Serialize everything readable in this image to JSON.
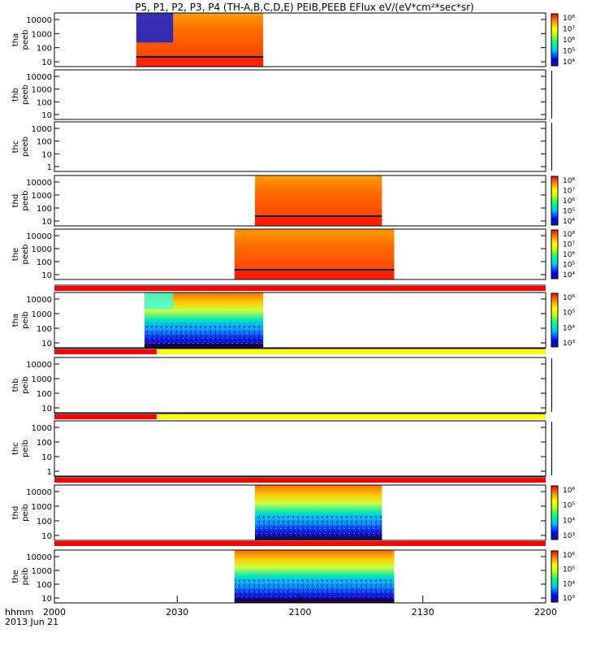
{
  "title": "P5, P1, P2, P3, P4 (TH-A,B,C,D,E) PEIB,PEEB EFlux eV/(eV*cm²*sec*sr)",
  "time_axis": {
    "label": "hhmm",
    "date": "2013 Jun 21",
    "ticks": [
      "2000",
      "2030",
      "2100",
      "2130",
      "2200"
    ]
  },
  "colors": {
    "status_red": "#ff0000",
    "status_yellow": "#ffff00"
  },
  "chart_data": [
    {
      "type": "heatmap",
      "id": "tha-peeb",
      "ylabel": [
        "tha",
        "peeb"
      ],
      "yticks": [
        "10000",
        "1000",
        "100",
        "10"
      ],
      "colorbar": [
        "10⁸",
        "10⁷",
        "10⁶",
        "10⁵",
        "10⁴"
      ],
      "coverage": [
        "20:20",
        "20:51"
      ],
      "scale": "log",
      "yrange": [
        5,
        30000
      ]
    },
    {
      "type": "heatmap",
      "id": "thb-peeb",
      "ylabel": [
        "thb",
        "peeb"
      ],
      "yticks": [
        "10000",
        "1000",
        "100",
        "10"
      ],
      "colorbar": [],
      "coverage": []
    },
    {
      "type": "heatmap",
      "id": "thc-peeb",
      "ylabel": [
        "thc",
        "peeb"
      ],
      "yticks": [
        "1000",
        "100",
        "10",
        "1"
      ],
      "colorbar": [],
      "coverage": []
    },
    {
      "type": "heatmap",
      "id": "thd-peeb",
      "ylabel": [
        "thd",
        "peeb"
      ],
      "yticks": [
        "10000",
        "1000",
        "100",
        "10"
      ],
      "colorbar": [
        "10⁸",
        "10⁷",
        "10⁶",
        "10⁵",
        "10⁴"
      ],
      "coverage": [
        "20:49",
        "21:20"
      ]
    },
    {
      "type": "heatmap",
      "id": "the-peeb",
      "ylabel": [
        "the",
        "peeb"
      ],
      "yticks": [
        "10000",
        "1000",
        "100",
        "10"
      ],
      "colorbar": [
        "10⁸",
        "10⁷",
        "10⁶",
        "10⁵",
        "10⁴"
      ],
      "coverage": [
        "20:44",
        "21:23"
      ]
    },
    {
      "type": "heatmap",
      "id": "tha-peib",
      "ylabel": [
        "tha",
        "peib"
      ],
      "yticks": [
        "10000",
        "1000",
        "100",
        "10"
      ],
      "colorbar": [
        "10⁶",
        "10⁵",
        "10⁴",
        "10³"
      ],
      "coverage": [
        "20:22",
        "20:51"
      ]
    },
    {
      "type": "heatmap",
      "id": "thb-peib",
      "ylabel": [
        "thb",
        "peib"
      ],
      "yticks": [
        "10000",
        "1000",
        "100",
        "10"
      ],
      "colorbar": [],
      "coverage": []
    },
    {
      "type": "heatmap",
      "id": "thc-peib",
      "ylabel": [
        "thc",
        "peib"
      ],
      "yticks": [
        "1000",
        "100",
        "10",
        "1"
      ],
      "colorbar": [],
      "coverage": []
    },
    {
      "type": "heatmap",
      "id": "thd-peib",
      "ylabel": [
        "thd",
        "peib"
      ],
      "yticks": [
        "10000",
        "1000",
        "100",
        "10"
      ],
      "colorbar": [
        "10⁶",
        "10⁵",
        "10⁴",
        "10³"
      ],
      "coverage": [
        "20:49",
        "21:20"
      ]
    },
    {
      "type": "heatmap",
      "id": "the-peib",
      "ylabel": [
        "the",
        "peib"
      ],
      "yticks": [
        "10000",
        "1000",
        "100",
        "10"
      ],
      "colorbar": [
        "10⁶",
        "10⁵",
        "10⁴",
        "10³"
      ],
      "coverage": [
        "20:44",
        "21:23"
      ]
    }
  ],
  "mode_bars": [
    {
      "id": "mode-bar-1",
      "segments": [
        {
          "color": "red",
          "span": [
            "20:00",
            "22:00"
          ]
        }
      ]
    },
    {
      "id": "mode-bar-2",
      "segments": [
        {
          "color": "red",
          "span": [
            "20:00",
            "20:25"
          ]
        },
        {
          "color": "yellow",
          "span": [
            "20:25",
            "22:00"
          ]
        }
      ]
    },
    {
      "id": "mode-bar-3",
      "segments": [
        {
          "color": "red",
          "span": [
            "20:00",
            "20:25"
          ]
        },
        {
          "color": "yellow",
          "span": [
            "20:25",
            "22:00"
          ]
        }
      ]
    },
    {
      "id": "mode-bar-4",
      "segments": [
        {
          "color": "red",
          "span": [
            "20:00",
            "22:00"
          ]
        }
      ]
    },
    {
      "id": "mode-bar-5",
      "segments": [
        {
          "color": "red",
          "span": [
            "20:00",
            "22:00"
          ]
        }
      ]
    }
  ]
}
